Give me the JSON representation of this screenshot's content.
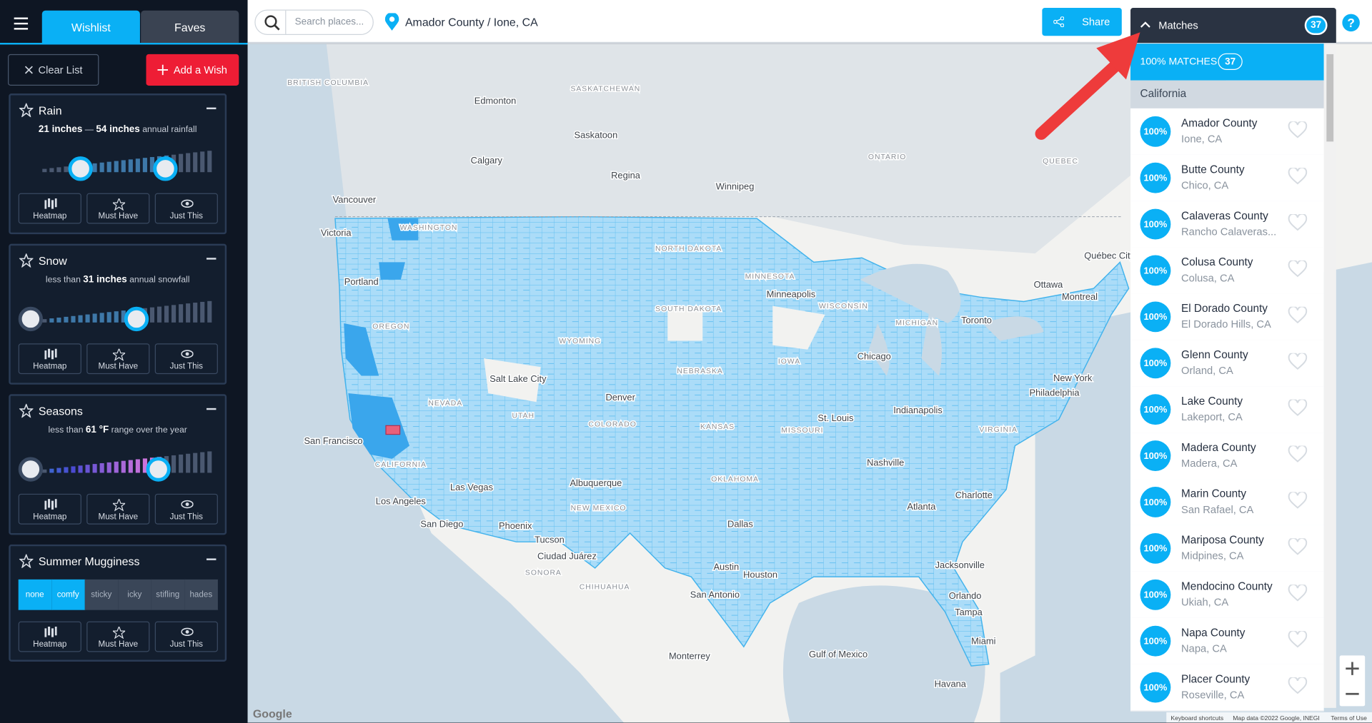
{
  "sidebar": {
    "tabs": [
      "Wishlist",
      "Faves"
    ],
    "clear_button": "Clear List",
    "add_button": "Add a Wish",
    "actions": [
      "Heatmap",
      "Must Have",
      "Just This"
    ],
    "wishes": [
      {
        "title": "Rain",
        "summary": [
          {
            "text": "21 inches",
            "bold": true
          },
          {
            "text": "—",
            "bold": false
          },
          {
            "text": "54 inches",
            "bold": true
          },
          {
            "text": "annual rainfall",
            "bold": false
          }
        ]
      },
      {
        "title": "Snow",
        "summary": [
          {
            "text": "less than",
            "bold": false
          },
          {
            "text": "31 inches",
            "bold": true
          },
          {
            "text": "annual snowfall",
            "bold": false
          }
        ]
      },
      {
        "title": "Seasons",
        "summary": [
          {
            "text": "less than",
            "bold": false
          },
          {
            "text": "61 °F",
            "bold": true
          },
          {
            "text": "range over the year",
            "bold": false
          }
        ]
      },
      {
        "title": "Summer Mugginess",
        "options": [
          {
            "label": "none",
            "selected": true
          },
          {
            "label": "comfy",
            "selected": true
          },
          {
            "label": "sticky",
            "selected": false
          },
          {
            "label": "icky",
            "selected": false
          },
          {
            "label": "stifling",
            "selected": false
          },
          {
            "label": "hades",
            "selected": false
          }
        ]
      }
    ]
  },
  "topbar": {
    "search_placeholder": "Search places...",
    "location": "Amador County / Ione, CA",
    "share": "Share",
    "help": "?"
  },
  "matches": {
    "title": "Matches",
    "count": 37,
    "section_header": "100% MATCHES",
    "section_count": 37,
    "group": "California",
    "items": [
      {
        "score": "100%",
        "name": "Amador County",
        "place": "Ione, CA"
      },
      {
        "score": "100%",
        "name": "Butte County",
        "place": "Chico, CA"
      },
      {
        "score": "100%",
        "name": "Calaveras County",
        "place": "Rancho Calaveras..."
      },
      {
        "score": "100%",
        "name": "Colusa County",
        "place": "Colusa, CA"
      },
      {
        "score": "100%",
        "name": "El Dorado County",
        "place": "El Dorado Hills, CA"
      },
      {
        "score": "100%",
        "name": "Glenn County",
        "place": "Orland, CA"
      },
      {
        "score": "100%",
        "name": "Lake County",
        "place": "Lakeport, CA"
      },
      {
        "score": "100%",
        "name": "Madera County",
        "place": "Madera, CA"
      },
      {
        "score": "100%",
        "name": "Marin County",
        "place": "San Rafael, CA"
      },
      {
        "score": "100%",
        "name": "Mariposa County",
        "place": "Midpines, CA"
      },
      {
        "score": "100%",
        "name": "Mendocino County",
        "place": "Ukiah, CA"
      },
      {
        "score": "100%",
        "name": "Napa County",
        "place": "Napa, CA"
      },
      {
        "score": "100%",
        "name": "Placer County",
        "place": "Roseville, CA"
      }
    ]
  },
  "map": {
    "logo": "Google",
    "attribution": [
      "Keyboard shortcuts",
      "Map data ©2022 Google, INEGI",
      "Terms of Use"
    ],
    "labels": [
      "BRITISH COLUMBIA",
      "SASKATCHEWAN",
      "Edmonton",
      "Saskatoon",
      "Calgary",
      "Regina",
      "Winnipeg",
      "ONTARIO",
      "QUEBEC",
      "Vancouver",
      "Victoria",
      "WASHINGTON",
      "NORTH DAKOTA",
      "Québec City",
      "Portland",
      "MINNESOTA",
      "Minneapolis",
      "Ottawa",
      "Montreal",
      "OREGON",
      "SOUTH DAKOTA",
      "WISCONSIN",
      "Toronto",
      "MICHIGAN",
      "WYOMING",
      "Chicago",
      "IOWA",
      "NEBRASKA",
      "Salt Lake City",
      "New York",
      "NEVADA",
      "Denver",
      "Indianapolis",
      "UTAH",
      "Philadelphia",
      "COLORADO",
      "St. Louis",
      "KANSAS",
      "San Francisco",
      "MISSOURI",
      "VIRGINIA",
      "Las Vegas",
      "Nashville",
      "CALIFORNIA",
      "Charlotte",
      "Los Angeles",
      "Albuquerque",
      "OKLAHOMA",
      "NEW MEXICO",
      "Atlanta",
      "San Diego",
      "Phoenix",
      "Dallas",
      "Tucson",
      "Ciudad Juárez",
      "Jacksonville",
      "SONORA",
      "Austin",
      "Houston",
      "CHIHUAHUA",
      "Orlando",
      "San Antonio",
      "Tampa",
      "Miami",
      "Gulf of Mexico",
      "Monterrey",
      "Havana"
    ]
  }
}
